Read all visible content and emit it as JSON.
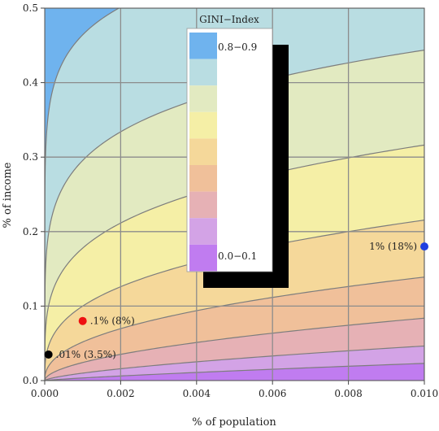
{
  "chart_data": {
    "type": "contour",
    "title": "",
    "xlabel": "% of population",
    "ylabel": "% of income",
    "xlim": [
      0,
      0.01
    ],
    "ylim": [
      0,
      0.5
    ],
    "x_ticks": [
      "0.000",
      "0.002",
      "0.004",
      "0.006",
      "0.008",
      "0.010"
    ],
    "x_tick_values": [
      0,
      0.002,
      0.004,
      0.006,
      0.008,
      0.01
    ],
    "y_ticks": [
      "0.0",
      "0.1",
      "0.2",
      "0.3",
      "0.4",
      "0.5"
    ],
    "y_tick_values": [
      0,
      0.1,
      0.2,
      0.3,
      0.4,
      0.5
    ],
    "grid": true,
    "bands": [
      {
        "range": "0.0-0.1",
        "color": "#c07cf0"
      },
      {
        "range": "0.1-0.2",
        "color": "#d3a3e6"
      },
      {
        "range": "0.2-0.3",
        "color": "#e6b1b5"
      },
      {
        "range": "0.3-0.4",
        "color": "#f0c09a"
      },
      {
        "range": "0.4-0.5",
        "color": "#f5d89a"
      },
      {
        "range": "0.5-0.6",
        "color": "#f5efa6"
      },
      {
        "range": "0.6-0.7",
        "color": "#e2eac1"
      },
      {
        "range": "0.7-0.8",
        "color": "#b9dde2"
      },
      {
        "range": "0.8-0.9",
        "color": "#6fb3ee"
      }
    ],
    "contour_levels": [
      0.1,
      0.2,
      0.3,
      0.4,
      0.5,
      0.6,
      0.7,
      0.8
    ],
    "points": [
      {
        "label": "1% (18%)",
        "x": 0.01,
        "y": 0.18,
        "color": "#1f3fe0",
        "label_side": "left"
      },
      {
        "label": ".1% (8%)",
        "x": 0.001,
        "y": 0.08,
        "color": "#ee1111",
        "label_side": "right"
      },
      {
        "label": ".01% (3.5%)",
        "x": 0.0001,
        "y": 0.035,
        "color": "#000000",
        "label_side": "right"
      }
    ],
    "legend": {
      "title": "GINI−Index",
      "top_label": "0.8−0.9",
      "bottom_label": "0.0−0.1",
      "placement": "center-top"
    }
  }
}
